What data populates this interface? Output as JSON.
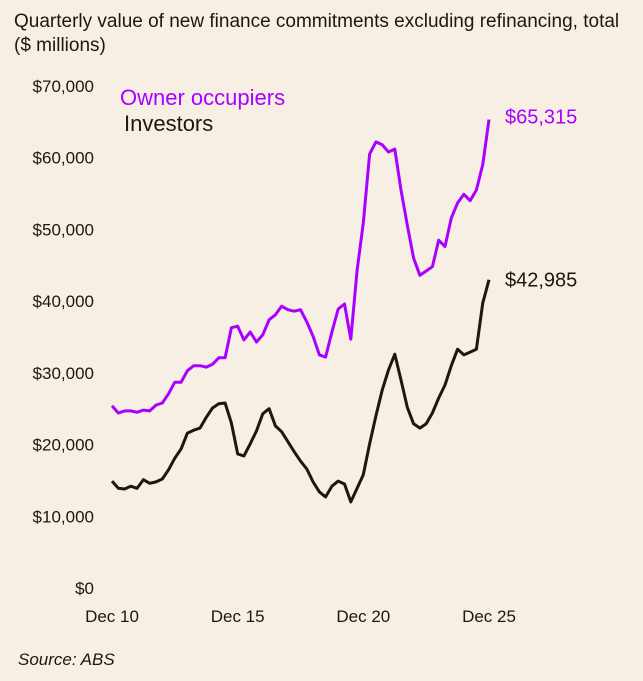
{
  "chart_data": {
    "type": "line",
    "title": "Quarterly value of new finance commitments excluding refinancing, total ($ millions)",
    "source": "Source: ABS",
    "xlabel": "",
    "ylabel": "",
    "x_tick_labels": [
      "Dec 10",
      "Dec 15",
      "Dec 20",
      "Dec 25"
    ],
    "y_tick_labels": [
      "$0",
      "$10,000",
      "$20,000",
      "$30,000",
      "$40,000",
      "$50,000",
      "$60,000",
      "$70,000"
    ],
    "ylim": [
      0,
      70000
    ],
    "x_range": [
      "Dec 10",
      "Dec 25"
    ],
    "frequency": "quarterly",
    "grid": false,
    "legend_placement": "top-left",
    "series": [
      {
        "name": "Owner occupiers",
        "color": "#aa00ff",
        "end_label": "$65,315",
        "values": [
          25400,
          24400,
          24700,
          24700,
          24500,
          24800,
          24700,
          25500,
          25800,
          27100,
          28700,
          28700,
          30300,
          31000,
          31000,
          30800,
          31200,
          32100,
          32100,
          36300,
          36500,
          34600,
          35700,
          34300,
          35300,
          37400,
          38100,
          39300,
          38800,
          38600,
          38800,
          37100,
          35100,
          32500,
          32200,
          35700,
          38900,
          39600,
          34700,
          44300,
          50900,
          60500,
          62200,
          61800,
          60800,
          61200,
          55500,
          50600,
          46000,
          43600,
          44200,
          44800,
          48500,
          47600,
          51600,
          53700,
          54900,
          54000,
          55500,
          59000,
          65315
        ]
      },
      {
        "name": "Investors",
        "color": "#1e1710",
        "end_label": "$42,985",
        "values": [
          14900,
          13900,
          13800,
          14200,
          13900,
          15100,
          14600,
          14800,
          15200,
          16500,
          18100,
          19400,
          21600,
          22000,
          22300,
          23800,
          25100,
          25700,
          25800,
          23000,
          18700,
          18400,
          20100,
          21900,
          24300,
          25000,
          22600,
          21800,
          20400,
          19000,
          17700,
          16600,
          14800,
          13400,
          12700,
          14200,
          14900,
          14500,
          12000,
          13900,
          15800,
          20100,
          24000,
          27600,
          30400,
          32600,
          29000,
          25200,
          22900,
          22300,
          22900,
          24400,
          26500,
          28300,
          31000,
          33300,
          32500,
          32900,
          33300,
          39700,
          42985
        ]
      }
    ]
  }
}
